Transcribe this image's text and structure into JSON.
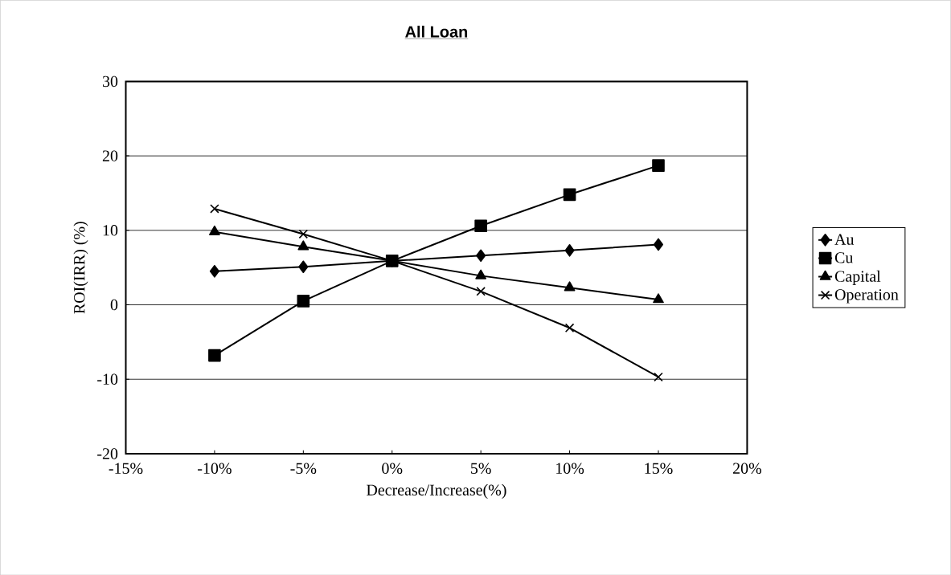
{
  "chart_data": {
    "type": "line",
    "title": "**All Loan**",
    "xlabel": "Decrease/Increase(%)",
    "ylabel": "ROI(IRR) (%)",
    "x": [
      -10,
      -5,
      0,
      5,
      10,
      15
    ],
    "series": [
      {
        "name": "Au",
        "color": "#000000",
        "marker": "diamond",
        "values": [
          4.5,
          5.1,
          5.9,
          6.6,
          7.3,
          8.1
        ]
      },
      {
        "name": "Cu",
        "color": "#000000",
        "marker": "square",
        "values": [
          -6.8,
          0.5,
          5.9,
          10.6,
          14.8,
          18.7
        ]
      },
      {
        "name": "Capital",
        "color": "#000000",
        "marker": "triangle",
        "values": [
          9.8,
          7.8,
          5.9,
          3.9,
          2.3,
          0.7
        ]
      },
      {
        "name": "Operation",
        "color": "#000000",
        "marker": "cross",
        "values": [
          12.9,
          9.5,
          5.9,
          1.8,
          -3.1,
          -9.7
        ]
      }
    ],
    "xlim": [
      -15,
      20
    ],
    "xticks": [
      {
        "value": -15,
        "label": "-15%"
      },
      {
        "value": -10,
        "label": "-10%"
      },
      {
        "value": -5,
        "label": "-5%"
      },
      {
        "value": 0,
        "label": "0%"
      },
      {
        "value": 5,
        "label": "5%"
      },
      {
        "value": 10,
        "label": "10%"
      },
      {
        "value": 15,
        "label": "15%"
      },
      {
        "value": 20,
        "label": "20%"
      }
    ],
    "ylim": [
      -20,
      30
    ],
    "yticks": [
      -20,
      -10,
      0,
      10,
      20,
      30
    ],
    "grid": "y",
    "legend": "right",
    "line_style": "solid"
  }
}
